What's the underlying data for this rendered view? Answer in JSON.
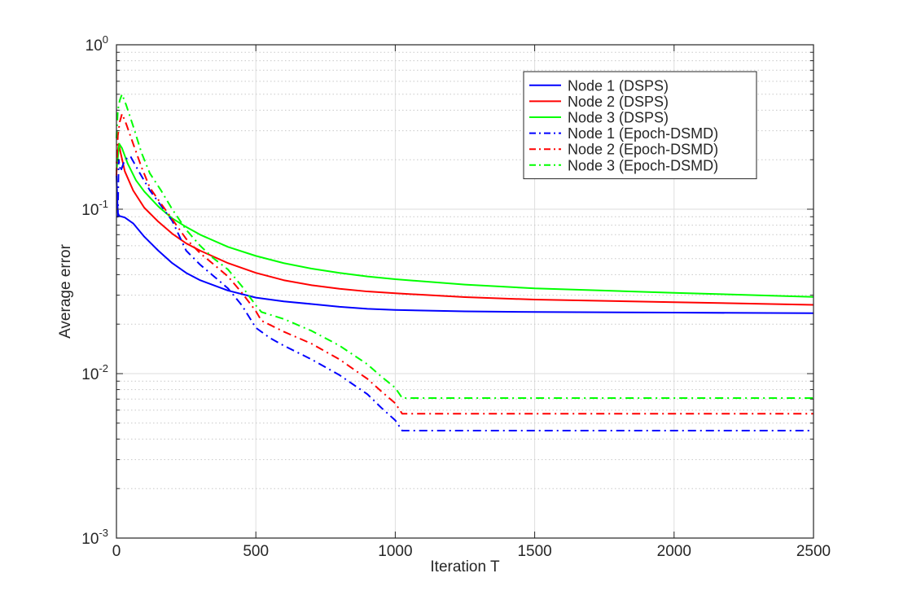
{
  "chart_data": {
    "type": "line",
    "title": "",
    "xlabel": "Iteration T",
    "ylabel": "Average error",
    "xlim": [
      0,
      2500
    ],
    "ylim": [
      0.001,
      1
    ],
    "yscale": "log",
    "grid": true,
    "legend_position": "top-right",
    "x_ticks": [
      0,
      500,
      1000,
      1500,
      2000,
      2500
    ],
    "x_tick_labels": [
      "0",
      "500",
      "1000",
      "1500",
      "2000",
      "2500"
    ],
    "y_ticks": [
      0.001,
      0.01,
      0.1,
      1
    ],
    "y_tick_labels": [
      {
        "base": "10",
        "exp": "-3"
      },
      {
        "base": "10",
        "exp": "-2"
      },
      {
        "base": "10",
        "exp": "-1"
      },
      {
        "base": "10",
        "exp": "0"
      }
    ],
    "series": [
      {
        "name": "Node 1 (DSPS)",
        "color": "#0000ff",
        "dash": "solid",
        "points": [
          [
            0,
            0.16
          ],
          [
            5,
            0.095
          ],
          [
            10,
            0.091
          ],
          [
            30,
            0.089
          ],
          [
            60,
            0.082
          ],
          [
            100,
            0.068
          ],
          [
            150,
            0.056
          ],
          [
            200,
            0.047
          ],
          [
            250,
            0.041
          ],
          [
            300,
            0.037
          ],
          [
            400,
            0.032
          ],
          [
            500,
            0.029
          ],
          [
            600,
            0.0275
          ],
          [
            700,
            0.0265
          ],
          [
            800,
            0.0255
          ],
          [
            900,
            0.0248
          ],
          [
            1000,
            0.0244
          ],
          [
            1250,
            0.0239
          ],
          [
            1500,
            0.0237
          ],
          [
            2000,
            0.0235
          ],
          [
            2500,
            0.0233
          ]
        ]
      },
      {
        "name": "Node 2 (DSPS)",
        "color": "#ff0000",
        "dash": "solid",
        "points": [
          [
            0,
            0.19
          ],
          [
            8,
            0.25
          ],
          [
            15,
            0.22
          ],
          [
            30,
            0.17
          ],
          [
            60,
            0.13
          ],
          [
            100,
            0.102
          ],
          [
            150,
            0.084
          ],
          [
            200,
            0.071
          ],
          [
            250,
            0.062
          ],
          [
            300,
            0.056
          ],
          [
            400,
            0.047
          ],
          [
            500,
            0.041
          ],
          [
            600,
            0.037
          ],
          [
            700,
            0.0345
          ],
          [
            800,
            0.0328
          ],
          [
            900,
            0.0316
          ],
          [
            1000,
            0.0308
          ],
          [
            1250,
            0.0292
          ],
          [
            1500,
            0.0282
          ],
          [
            2000,
            0.0272
          ],
          [
            2500,
            0.0262
          ]
        ]
      },
      {
        "name": "Node 3 (DSPS)",
        "color": "#00ff00",
        "dash": "solid",
        "points": [
          [
            0,
            0.17
          ],
          [
            10,
            0.25
          ],
          [
            20,
            0.235
          ],
          [
            40,
            0.19
          ],
          [
            70,
            0.15
          ],
          [
            100,
            0.128
          ],
          [
            150,
            0.104
          ],
          [
            200,
            0.088
          ],
          [
            250,
            0.078
          ],
          [
            300,
            0.07
          ],
          [
            400,
            0.059
          ],
          [
            500,
            0.052
          ],
          [
            600,
            0.047
          ],
          [
            700,
            0.0435
          ],
          [
            800,
            0.041
          ],
          [
            900,
            0.039
          ],
          [
            1000,
            0.0375
          ],
          [
            1250,
            0.0348
          ],
          [
            1500,
            0.033
          ],
          [
            2000,
            0.031
          ],
          [
            2500,
            0.0293
          ]
        ]
      },
      {
        "name": "Node 1 (Epoch-DSMD)",
        "color": "#0000ff",
        "dash": "dashdot",
        "points": [
          [
            0,
            0.09
          ],
          [
            5,
            0.09
          ],
          [
            8,
            0.2
          ],
          [
            15,
            0.17
          ],
          [
            30,
            0.2
          ],
          [
            50,
            0.21
          ],
          [
            80,
            0.17
          ],
          [
            120,
            0.13
          ],
          [
            160,
            0.105
          ],
          [
            200,
            0.085
          ],
          [
            250,
            0.056
          ],
          [
            300,
            0.046
          ],
          [
            350,
            0.039
          ],
          [
            400,
            0.033
          ],
          [
            450,
            0.026
          ],
          [
            500,
            0.019
          ],
          [
            550,
            0.0165
          ],
          [
            600,
            0.0148
          ],
          [
            700,
            0.0122
          ],
          [
            800,
            0.0098
          ],
          [
            900,
            0.0075
          ],
          [
            950,
            0.0062
          ],
          [
            1000,
            0.0052
          ],
          [
            1025,
            0.0045
          ],
          [
            1500,
            0.0045
          ],
          [
            2000,
            0.0045
          ],
          [
            2500,
            0.0045
          ]
        ]
      },
      {
        "name": "Node 2 (Epoch-DSMD)",
        "color": "#ff0000",
        "dash": "dashdot",
        "points": [
          [
            0,
            0.16
          ],
          [
            5,
            0.28
          ],
          [
            12,
            0.34
          ],
          [
            20,
            0.38
          ],
          [
            35,
            0.33
          ],
          [
            60,
            0.25
          ],
          [
            90,
            0.18
          ],
          [
            120,
            0.135
          ],
          [
            160,
            0.108
          ],
          [
            200,
            0.087
          ],
          [
            250,
            0.066
          ],
          [
            300,
            0.054
          ],
          [
            350,
            0.046
          ],
          [
            400,
            0.039
          ],
          [
            450,
            0.031
          ],
          [
            500,
            0.024
          ],
          [
            520,
            0.021
          ],
          [
            600,
            0.018
          ],
          [
            700,
            0.0152
          ],
          [
            800,
            0.0122
          ],
          [
            900,
            0.0093
          ],
          [
            950,
            0.0078
          ],
          [
            1000,
            0.0066
          ],
          [
            1025,
            0.0057
          ],
          [
            1500,
            0.0057
          ],
          [
            2000,
            0.0057
          ],
          [
            2500,
            0.0057
          ]
        ]
      },
      {
        "name": "Node 3 (Epoch-DSMD)",
        "color": "#00ff00",
        "dash": "dashdot",
        "points": [
          [
            0,
            0.27
          ],
          [
            5,
            0.4
          ],
          [
            12,
            0.46
          ],
          [
            20,
            0.5
          ],
          [
            35,
            0.43
          ],
          [
            60,
            0.32
          ],
          [
            90,
            0.22
          ],
          [
            120,
            0.165
          ],
          [
            160,
            0.13
          ],
          [
            200,
            0.1
          ],
          [
            250,
            0.075
          ],
          [
            300,
            0.06
          ],
          [
            350,
            0.05
          ],
          [
            400,
            0.043
          ],
          [
            450,
            0.034
          ],
          [
            500,
            0.026
          ],
          [
            520,
            0.0237
          ],
          [
            600,
            0.0215
          ],
          [
            700,
            0.0182
          ],
          [
            800,
            0.0148
          ],
          [
            900,
            0.0114
          ],
          [
            950,
            0.0096
          ],
          [
            1000,
            0.0082
          ],
          [
            1025,
            0.0071
          ],
          [
            1500,
            0.0071
          ],
          [
            2000,
            0.0071
          ],
          [
            2500,
            0.0071
          ]
        ]
      }
    ]
  }
}
